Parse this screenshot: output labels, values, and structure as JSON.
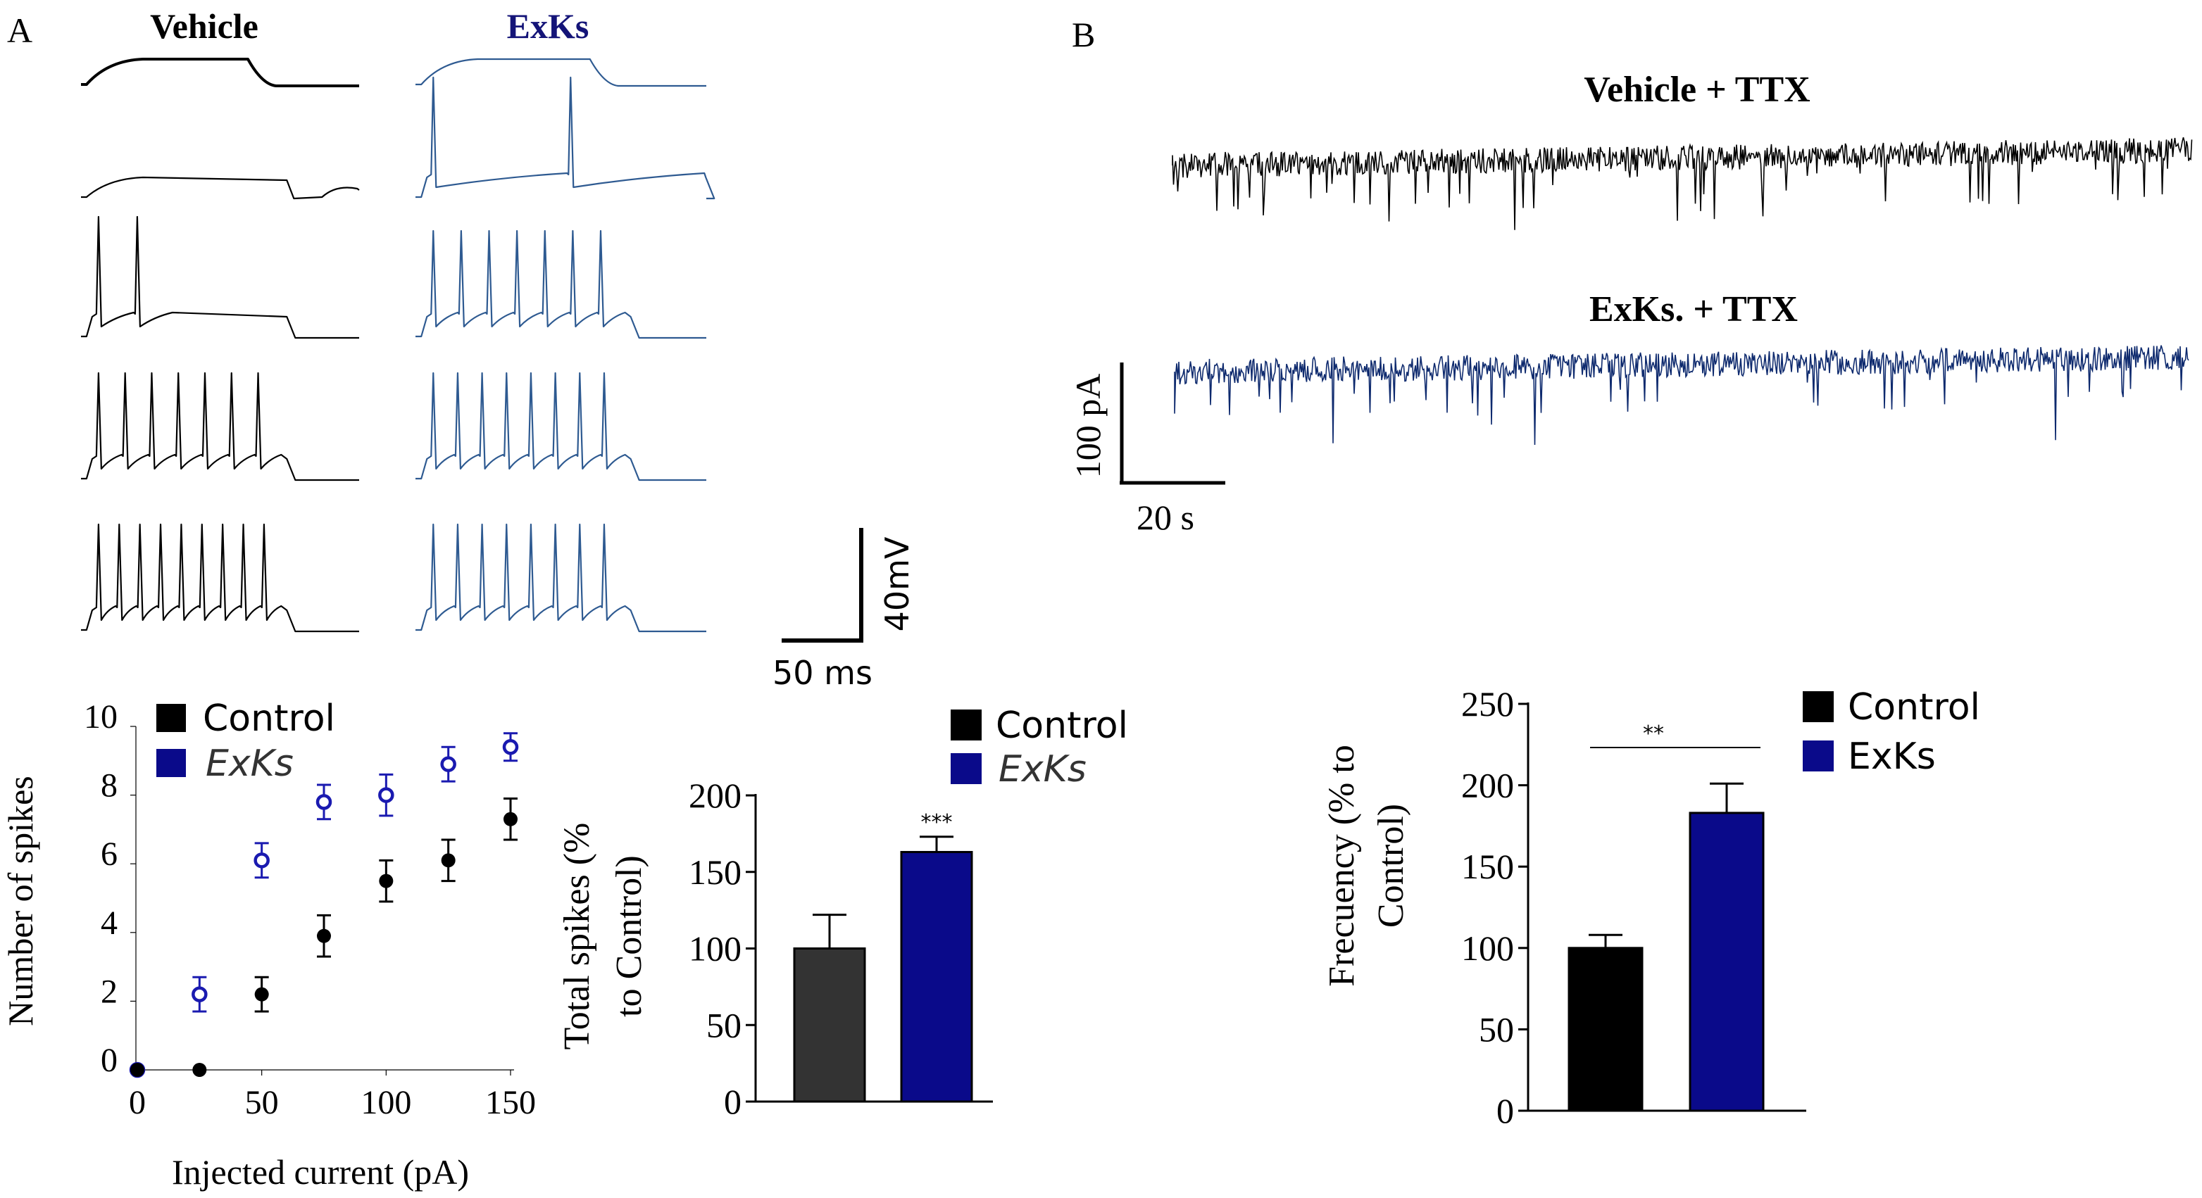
{
  "panel_labels": {
    "a": "A",
    "b": "B"
  },
  "traces_a": {
    "vehicle_title": "Vehicle",
    "exks_title": "ExKs",
    "scale_y_label": "40mV",
    "scale_x_label": "50 ms",
    "vehicle_color": "#000000",
    "exks_color": "#2e5a91",
    "title_color": "#000000",
    "exks_title_color": "#141478",
    "vehicle_spike_counts": [
      0,
      0,
      2,
      7,
      9
    ],
    "exks_spike_counts": [
      0,
      2,
      7,
      8,
      8
    ]
  },
  "traces_b": {
    "vehicle_title": "Vehicle + TTX",
    "exks_title": "ExKs. + TTX",
    "scale_y_label": "100 pA",
    "scale_x_label": "20 s",
    "vehicle_color": "#000000",
    "exks_color": "#0e2a6e"
  },
  "colors": {
    "control": "#000000",
    "exks": "#0a0a8a",
    "exks_open": "#1a1ab0",
    "control_bar_gray": "#333333"
  },
  "chart_data": [
    {
      "type": "scatter",
      "ylabel": "Number of spikes",
      "xlabel": "Injected current (pA)",
      "xlim": [
        0,
        150
      ],
      "ylim": [
        0,
        10
      ],
      "xticks": [
        0,
        50,
        100,
        150
      ],
      "yticks": [
        0,
        2,
        4,
        6,
        8,
        10
      ],
      "legend": [
        "Control",
        "ExKs"
      ],
      "legend_position": "top-left",
      "series": [
        {
          "name": "Control",
          "x": [
            0,
            25,
            50,
            75,
            100,
            125,
            150
          ],
          "y": [
            0,
            0,
            2.2,
            3.9,
            5.5,
            6.1,
            7.3
          ],
          "err": [
            0,
            0,
            0.5,
            0.6,
            0.6,
            0.6,
            0.6
          ]
        },
        {
          "name": "ExKs",
          "x": [
            0,
            25,
            50,
            75,
            100,
            125,
            150
          ],
          "y": [
            0,
            2.2,
            6.1,
            7.8,
            8.0,
            8.9,
            9.4
          ],
          "err": [
            0,
            0.5,
            0.5,
            0.5,
            0.6,
            0.5,
            0.4
          ]
        }
      ]
    },
    {
      "type": "bar",
      "ylabel": "Total spikes (% to Control)",
      "ylabel_lines": [
        "Total spikes (%",
        "to Control)"
      ],
      "ylim": [
        0,
        200
      ],
      "yticks": [
        0,
        50,
        100,
        150,
        200
      ],
      "categories": [
        "Control",
        "ExKs"
      ],
      "values": [
        100,
        163
      ],
      "err": [
        22,
        10
      ],
      "significance": "***",
      "legend": [
        "Control",
        "ExKs"
      ]
    },
    {
      "type": "bar",
      "ylabel": "Frecuency (% to Control)",
      "ylabel_lines": [
        "Frecuency (% to",
        "Control)"
      ],
      "ylim": [
        0,
        250
      ],
      "yticks": [
        0,
        50,
        100,
        150,
        200,
        250
      ],
      "categories": [
        "Control",
        "ExKs"
      ],
      "values": [
        100,
        183
      ],
      "err": [
        8,
        18
      ],
      "significance": "**",
      "legend": [
        "Control",
        "ExKs"
      ]
    }
  ]
}
